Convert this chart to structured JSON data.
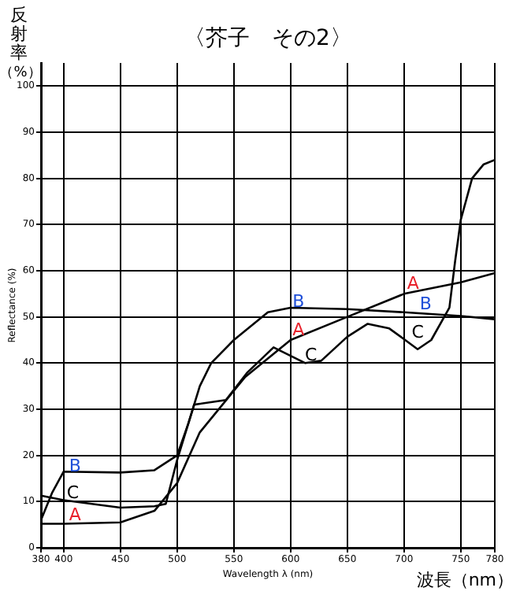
{
  "chart_data": {
    "type": "line",
    "title": "〈芥子　その2〉",
    "ylabel": "反射率（%）",
    "xlabel": "波長（nm）",
    "annotations": [
      {
        "text": "A",
        "x": 410,
        "y": 7
      },
      {
        "text": "A",
        "x": 607,
        "y": 47
      },
      {
        "text": "A",
        "x": 708,
        "y": 57
      },
      {
        "text": "B",
        "x": 410,
        "y": 17.5
      },
      {
        "text": "B",
        "x": 607,
        "y": 53.2
      },
      {
        "text": "B",
        "x": 719,
        "y": 52.6
      },
      {
        "text": "C",
        "x": 408,
        "y": 11.7
      },
      {
        "text": "C",
        "x": 618,
        "y": 41.6
      },
      {
        "text": "C",
        "x": 712,
        "y": 43
      },
      "Reflectance (%)",
      "Wavelength λ (nm)"
    ],
    "xlim": [
      380,
      780
    ],
    "xticks": [
      380,
      400,
      450,
      500,
      550,
      600,
      650,
      700,
      750,
      780
    ],
    "ylim": [
      0,
      105
    ],
    "yticks": [
      0,
      10,
      20,
      30,
      40,
      50,
      60,
      70,
      80,
      90,
      100
    ],
    "grid": true,
    "legend": false,
    "marker": "none",
    "series": [
      {
        "color": "#000000",
        "x": [
          380,
          400,
          450,
          480,
          500,
          520,
          540,
          560,
          580,
          600,
          650,
          700,
          750,
          780
        ],
        "values": [
          5.2,
          5.2,
          5.5,
          8,
          14,
          25,
          31,
          37,
          41,
          45,
          50,
          55,
          57.5,
          59.5
        ]
      },
      {
        "color": "#000000",
        "x": [
          380,
          390,
          400,
          450,
          480,
          500,
          510,
          520,
          530,
          550,
          580,
          600,
          650,
          700,
          750,
          780
        ],
        "values": [
          6,
          12,
          16.5,
          16.3,
          16.8,
          20,
          27,
          35,
          40,
          45,
          51,
          52,
          51.7,
          51,
          50.2,
          49.5
        ]
      },
      {
        "color": "#000000",
        "x": [
          380,
          400,
          450,
          480,
          490,
          500,
          515,
          543,
          562,
          585,
          613,
          627,
          650,
          668,
          687,
          701,
          712,
          724,
          740,
          745,
          750,
          760,
          770,
          780
        ],
        "values": [
          11.3,
          10.3,
          8.7,
          9,
          9.5,
          19,
          31,
          32,
          38,
          43.4,
          40,
          40.5,
          45.7,
          48.5,
          47.5,
          45,
          43,
          45,
          52,
          62,
          71,
          80,
          83,
          84
        ]
      }
    ]
  }
}
